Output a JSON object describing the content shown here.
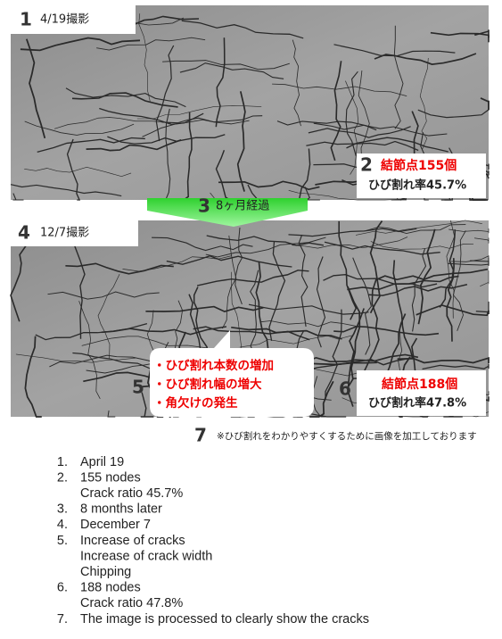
{
  "photo_before": {
    "number": "1",
    "label": "4/19撮影",
    "callout": {
      "number": "2",
      "nodes": "結節点155個",
      "ratio": "ひび割れ率45.7%"
    }
  },
  "arrow": {
    "number": "3",
    "label": "8ヶ月経過"
  },
  "photo_after": {
    "number": "4",
    "label": "12/7撮影",
    "bubble": {
      "number": "5",
      "lines": [
        "・ひび割れ本数の増加",
        "・ひび割れ幅の増大",
        "・角欠けの発生"
      ]
    },
    "callout": {
      "number": "6",
      "nodes": "結節点188個",
      "ratio": "ひび割れ率47.8%"
    }
  },
  "note": {
    "number": "7",
    "text": "※ひび割れをわかりやすくするために画像を加工しております"
  },
  "legend": {
    "items": [
      {
        "marker": "1.",
        "lines": [
          "April 19"
        ]
      },
      {
        "marker": "2.",
        "lines": [
          "155 nodes",
          "Crack ratio 45.7%"
        ]
      },
      {
        "marker": "3.",
        "lines": [
          "8 months later"
        ]
      },
      {
        "marker": "4.",
        "lines": [
          "December 7"
        ]
      },
      {
        "marker": "5.",
        "lines": [
          "Increase of cracks",
          "Increase of crack width",
          "Chipping"
        ]
      },
      {
        "marker": "6.",
        "lines": [
          "188 nodes",
          "Crack ratio 47.8%"
        ]
      },
      {
        "marker": "7.",
        "lines": [
          "The image is processed to clearly show the cracks"
        ]
      }
    ]
  }
}
